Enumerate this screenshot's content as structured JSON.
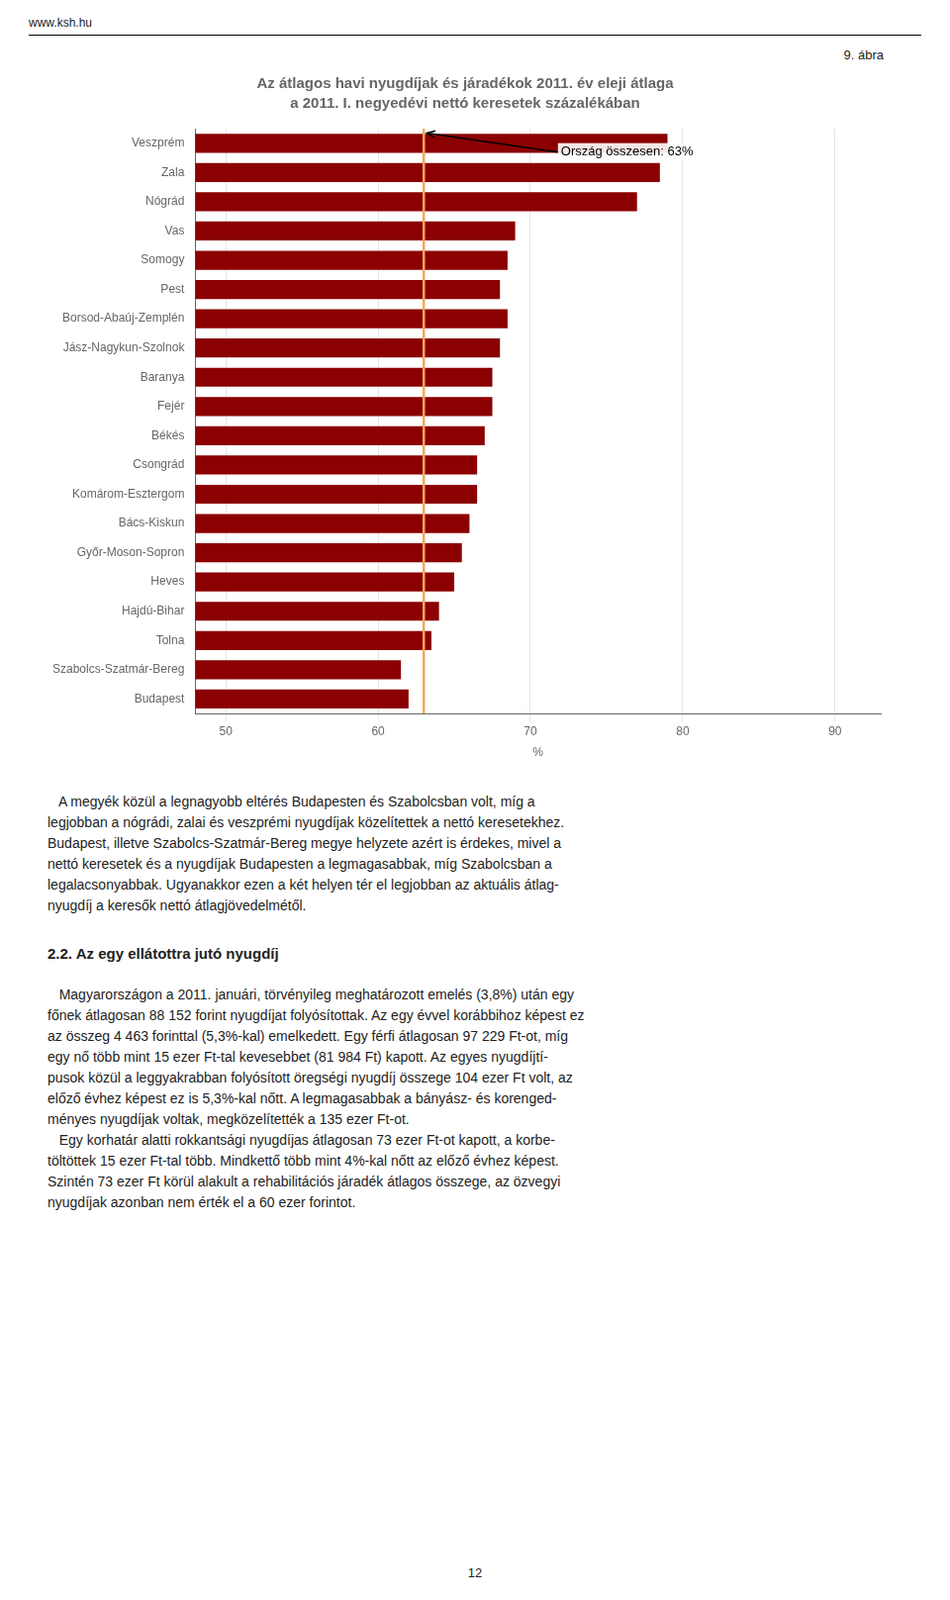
{
  "chart_data": {
    "type": "bar",
    "orientation": "horizontal",
    "title": "Az átlagos havi nyugdíjak és járadékok 2011. év eleji átlaga",
    "subtitle": "a 2011. I. negyedévi nettó keresetek százalékában",
    "categories": [
      "Budapest",
      "Szabolcs-Szatmár-Bereg",
      "Tolna",
      "Hajdú-Bihar",
      "Heves",
      "Győr-Moson-Sopron",
      "Bács-Kiskun",
      "Komárom-Esztergom",
      "Csongrád",
      "Békés",
      "Fejér",
      "Baranya",
      "Jász-Nagykun-Szolnok",
      "Borsod-Abaúj-Zemplén",
      "Pest",
      "Somogy",
      "Vas",
      "Nógrád",
      "Zala",
      "Veszprém"
    ],
    "values": [
      62.0,
      61.5,
      63.5,
      64.0,
      65.0,
      65.5,
      66.0,
      66.5,
      66.5,
      67.0,
      67.5,
      67.5,
      68.0,
      68.5,
      68.0,
      68.5,
      69.0,
      77.0,
      78.5,
      79.0
    ],
    "color": "#8B0000",
    "xlabel": "%",
    "xlim": [
      48,
      93
    ],
    "xticks": [
      50,
      60,
      70,
      80,
      90
    ],
    "grid": true,
    "reference_line": {
      "value": 63,
      "color": "#F5A85A"
    },
    "annotations": [
      {
        "text": "Ország összesen: 63%",
        "x": 72.0,
        "y": 18.7,
        "arrow_x": 63.2,
        "arrow_y": 19.35
      }
    ]
  },
  "watermark": "www.ksh.hu",
  "figure_label": "9. ábra",
  "text_block": "   A megyék közül a legnagyobb eltérés Budapesten és Szabolcsban volt, míg a\nlegjobban a nógrádi, zalai és veszprémi nyugdíjak közelítettek a nettó keresetekhez.\nBudapest, illetve Szabolcs-Szatmár-Bereg megye helyzete azért is érdekes, mivel a\nnettó keresetek és a nyugdíjak Budapesten a legmagasabbak, míg Szabolcsban a\nlegalacsonyabbak. Ugyanakkor ezen a két helyen tér el legjobban az aktuális átlag-\nnyugdíj a keresők nettó átlagjövedelmétől.",
  "section_header": "2.2. Az egy ellátottra jutó nyugdíj",
  "body_text": "   Magyarországon a 2011. januári, törvényileg meghatározott emelés (3,8%) után egy\nfőnek átlagosan 88 152 forint nyugdíjat folyósítottak. Az egy évvel korábbihoz képest ez\naz összeg 4 463 forinttal (5,3%-kal) emelkedett. Egy férfi átlagosan 97 229 Ft-ot, míg\negy nő több mint 15 ezer Ft-tal kevesebbet (81 984 Ft) kapott. Az egyes nyugdíjtí-\npusok közül a leggyakrabban folyósított öregségi nyugdíj összege 104 ezer Ft volt, az\nelőző évhez képest ez is 5,3%-kal nőtt. A legmagasabbak a bányász- és korenged-\nményes nyugdíjak voltak, megközelítették a 135 ezer Ft-ot.\n   Egy korhatár alatti rokkantsági nyugdíjas átlagosan 73 ezer Ft-ot kapott, a korbe-\ntöltöttek 15 ezer Ft-tal több. Mindkettő több mint 4%-kal nőtt az előző évhez képest.\nSzintén 73 ezer Ft körül alakult a rehabilitációs járadék átlagos összege, az özvegyi\nnyugdíjak azonban nem érték el a 60 ezer forintot.",
  "page_number": "12"
}
